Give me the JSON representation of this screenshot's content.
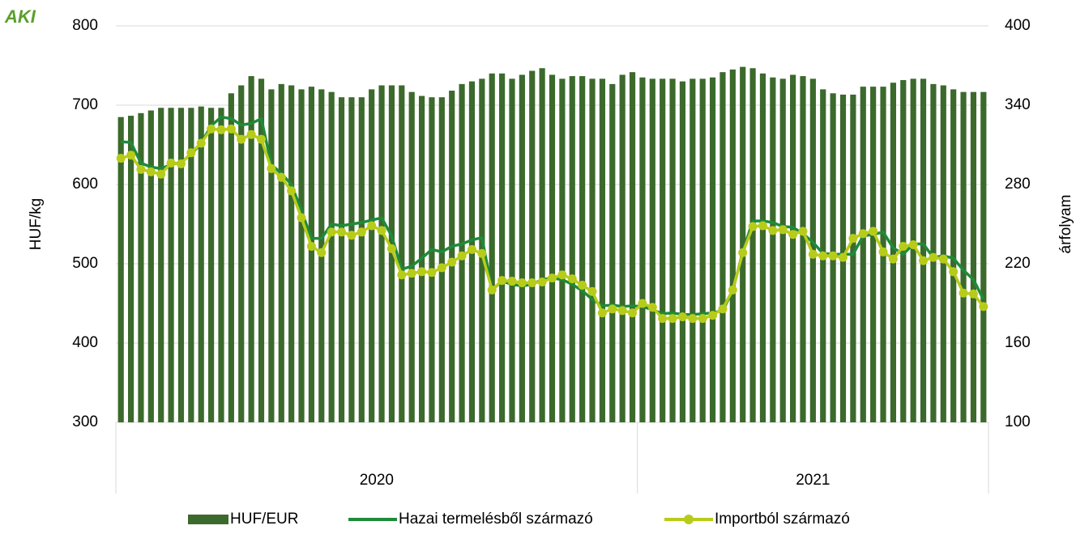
{
  "logo": "AKI",
  "chart_data": {
    "type": "bar-line",
    "y_label": "HUF/kg",
    "y2_label": "árfolyam",
    "categories": [
      null,
      null,
      null,
      null,
      null,
      null,
      null,
      null,
      null,
      null,
      null,
      null,
      null,
      null,
      null,
      null,
      null,
      null,
      null,
      null,
      null,
      null,
      null,
      null,
      null,
      null,
      null,
      null,
      null,
      null,
      null,
      null,
      null,
      null,
      null,
      null,
      null,
      null,
      null,
      null,
      null,
      null,
      null,
      null,
      null,
      null,
      null,
      null,
      null,
      null,
      null,
      null,
      null,
      null,
      null,
      null,
      null,
      null,
      null,
      null,
      null,
      null,
      null,
      null,
      null,
      null,
      null,
      null,
      null,
      null,
      null,
      null,
      null,
      null,
      null,
      null,
      null,
      null,
      null,
      null,
      null,
      null,
      null,
      null,
      null,
      null,
      null
    ],
    "groups": [
      {
        "label": "2020",
        "count": 52
      },
      {
        "label": "2021",
        "count": 35
      }
    ],
    "ylim": [
      300,
      800
    ],
    "yticks": [
      300,
      400,
      500,
      600,
      700,
      800
    ],
    "y2lim": [
      100,
      400
    ],
    "y2ticks": [
      100,
      160,
      220,
      280,
      340,
      400
    ],
    "grid": true,
    "legend": "bottom",
    "series": [
      {
        "name": "HUF/EUR",
        "type": "bar",
        "axis": "y2",
        "color": "#3b6a2c",
        "values": [
          331,
          332,
          334,
          336,
          338,
          338,
          338,
          338,
          339,
          338,
          338,
          349,
          355,
          362,
          360,
          352,
          356,
          355,
          352,
          354,
          352,
          350,
          346,
          346,
          346,
          352,
          355,
          355,
          355,
          350,
          347,
          346,
          346,
          351,
          356,
          358,
          360,
          364,
          364,
          360,
          363,
          366,
          368,
          363,
          360,
          362,
          362,
          360,
          360,
          356,
          363,
          365,
          361,
          360,
          360,
          360,
          358,
          360,
          360,
          361,
          365,
          367,
          369,
          368,
          364,
          361,
          360,
          363,
          362,
          360,
          352,
          349,
          348,
          348,
          354,
          354,
          354,
          357,
          359,
          360,
          360,
          356,
          355,
          352,
          350,
          350,
          350
        ]
      },
      {
        "name": "Hazai termelésből származó",
        "type": "line",
        "color": "#1e8b3a",
        "values": [
          654,
          653,
          627,
          622,
          620,
          625,
          628,
          638,
          652,
          674,
          685,
          683,
          675,
          677,
          683,
          625,
          614,
          600,
          567,
          532,
          532,
          550,
          548,
          550,
          552,
          555,
          558,
          535,
          493,
          497,
          507,
          518,
          515,
          522,
          525,
          530,
          533,
          467,
          478,
          474,
          472,
          474,
          480,
          482,
          480,
          474,
          466,
          455,
          447,
          448,
          446,
          447,
          446,
          442,
          437,
          438,
          436,
          436,
          437,
          438,
          441,
          466,
          515,
          554,
          554,
          552,
          547,
          546,
          538,
          527,
          513,
          512,
          512,
          512,
          535,
          537,
          540,
          520,
          512,
          525,
          525,
          508,
          510,
          507,
          492,
          480,
          455
        ]
      },
      {
        "name": "Importból származó",
        "type": "line-marker",
        "color": "#b7cc1a",
        "values": [
          633,
          637,
          619,
          616,
          613,
          627,
          626,
          640,
          652,
          670,
          669,
          670,
          657,
          663,
          657,
          620,
          609,
          592,
          558,
          522,
          514,
          540,
          540,
          536,
          540,
          548,
          542,
          519,
          486,
          488,
          490,
          489,
          495,
          502,
          510,
          518,
          513,
          467,
          479,
          478,
          476,
          476,
          477,
          482,
          486,
          481,
          473,
          465,
          438,
          443,
          441,
          438,
          450,
          445,
          431,
          431,
          433,
          431,
          431,
          435,
          443,
          467,
          514,
          547,
          548,
          542,
          543,
          537,
          541,
          512,
          510,
          510,
          508,
          532,
          538,
          541,
          515,
          506,
          522,
          524,
          504,
          508,
          506,
          490,
          463,
          462,
          446
        ]
      }
    ]
  }
}
